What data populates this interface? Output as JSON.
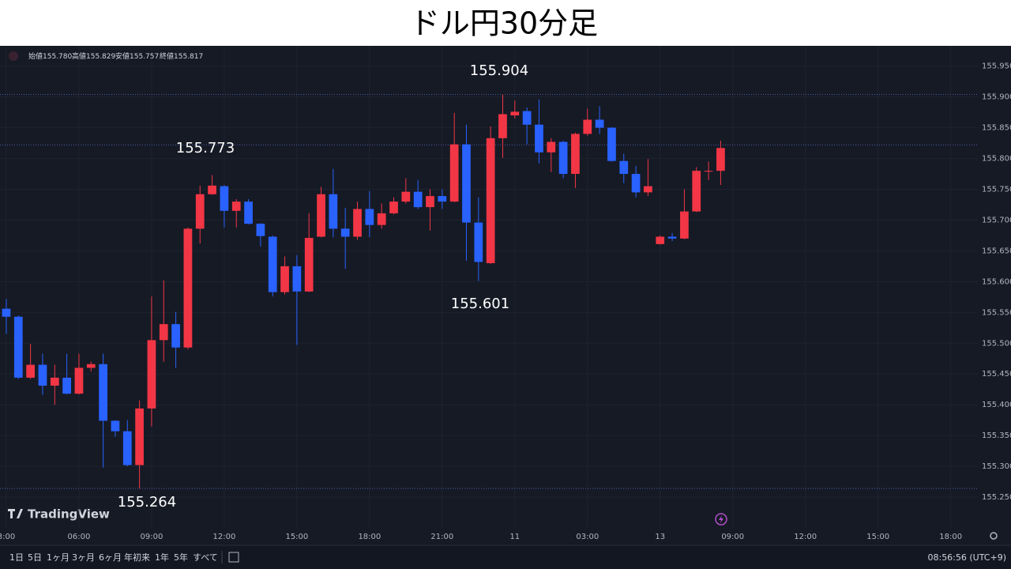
{
  "chart_data": {
    "type": "candlestick",
    "title": "ドル円30分足",
    "legend_items": [
      {
        "name": "始値",
        "value": "155.780"
      },
      {
        "name": "高値",
        "value": "155.829"
      },
      {
        "name": "安値",
        "value": "155.757"
      },
      {
        "name": "終値",
        "value": "155.817"
      }
    ],
    "open": [
      155.556,
      155.543,
      155.444,
      155.465,
      155.431,
      155.444,
      155.418,
      155.46,
      155.466,
      155.374,
      155.357,
      155.302,
      155.394,
      155.505,
      155.531,
      155.493,
      155.686,
      155.742,
      155.755,
      155.715,
      155.73,
      155.694,
      155.673,
      155.583,
      155.625,
      155.584,
      155.673,
      155.742,
      155.686,
      155.673,
      155.718,
      155.692,
      155.711,
      155.73,
      155.746,
      155.721,
      155.739,
      155.73,
      155.823,
      155.696,
      155.63,
      155.833,
      155.87,
      155.877,
      155.855,
      155.81,
      155.827,
      155.775,
      155.84,
      155.863,
      155.85,
      155.796,
      155.775,
      155.745,
      155.661,
      155.673,
      155.67,
      155.714,
      155.78,
      155.78
    ],
    "high": [
      155.572,
      155.545,
      155.499,
      155.483,
      155.465,
      155.483,
      155.483,
      155.47,
      155.483,
      155.375,
      155.375,
      155.407,
      155.576,
      155.602,
      155.551,
      155.688,
      155.756,
      155.773,
      155.757,
      155.734,
      155.734,
      155.695,
      155.675,
      155.641,
      155.643,
      155.711,
      155.754,
      155.783,
      155.72,
      155.73,
      155.747,
      155.727,
      155.737,
      155.768,
      155.765,
      155.75,
      155.75,
      155.874,
      155.855,
      155.737,
      155.852,
      155.904,
      155.894,
      155.883,
      155.896,
      155.833,
      155.829,
      155.842,
      155.881,
      155.885,
      155.851,
      155.808,
      155.788,
      155.799,
      155.675,
      155.679,
      155.75,
      155.786,
      155.795,
      155.829
    ],
    "low": [
      155.515,
      155.442,
      155.442,
      155.416,
      155.4,
      155.417,
      155.417,
      155.454,
      155.298,
      155.348,
      155.3,
      155.264,
      155.365,
      155.47,
      155.46,
      155.49,
      155.662,
      155.741,
      155.688,
      155.688,
      155.693,
      155.657,
      155.576,
      155.579,
      155.497,
      155.583,
      155.672,
      155.672,
      155.621,
      155.668,
      155.672,
      155.686,
      155.709,
      155.727,
      155.718,
      155.683,
      155.718,
      155.729,
      155.634,
      155.601,
      155.629,
      155.801,
      155.865,
      155.823,
      155.792,
      155.778,
      155.768,
      155.752,
      155.837,
      155.84,
      155.795,
      155.76,
      155.737,
      155.739,
      155.66,
      155.666,
      155.669,
      155.713,
      155.765,
      155.757
    ],
    "close": [
      155.543,
      155.444,
      155.465,
      155.431,
      155.444,
      155.418,
      155.46,
      155.466,
      155.374,
      155.357,
      155.302,
      155.394,
      155.505,
      155.531,
      155.493,
      155.686,
      155.742,
      155.756,
      155.715,
      155.73,
      155.694,
      155.674,
      155.583,
      155.625,
      155.584,
      155.671,
      155.742,
      155.686,
      155.673,
      155.718,
      155.692,
      155.711,
      155.73,
      155.746,
      155.721,
      155.739,
      155.73,
      155.823,
      155.696,
      155.632,
      155.833,
      155.872,
      155.876,
      155.855,
      155.81,
      155.827,
      155.775,
      155.84,
      155.863,
      155.85,
      155.796,
      155.775,
      155.745,
      155.755,
      155.673,
      155.67,
      155.714,
      155.78,
      155.78,
      155.817
    ],
    "up_color": "#f23645",
    "down_color": "#2962ff",
    "xlim": [
      -0.52,
      80.24
    ],
    "xticks": [
      {
        "value": 0,
        "label": "3:00"
      },
      {
        "value": 6,
        "label": "06:00"
      },
      {
        "value": 12,
        "label": "09:00"
      },
      {
        "value": 18,
        "label": "12:00"
      },
      {
        "value": 24,
        "label": "15:00"
      },
      {
        "value": 30,
        "label": "18:00"
      },
      {
        "value": 36,
        "label": "21:00"
      },
      {
        "value": 42,
        "label": "11"
      },
      {
        "value": 48,
        "label": "03:00"
      },
      {
        "value": 54,
        "label": "13"
      },
      {
        "value": 60,
        "label": "09:00"
      },
      {
        "value": 66,
        "label": "12:00"
      },
      {
        "value": 72,
        "label": "15:00"
      },
      {
        "value": 78,
        "label": "18:00"
      }
    ],
    "ylim": [
      155.2,
      155.983
    ],
    "yticks": [
      {
        "value": 155.25,
        "label": "155.250"
      },
      {
        "value": 155.3,
        "label": "155.300"
      },
      {
        "value": 155.35,
        "label": "155.350"
      },
      {
        "value": 155.4,
        "label": "155.400"
      },
      {
        "value": 155.45,
        "label": "155.450"
      },
      {
        "value": 155.5,
        "label": "155.500"
      },
      {
        "value": 155.55,
        "label": "155.550"
      },
      {
        "value": 155.6,
        "label": "155.600"
      },
      {
        "value": 155.65,
        "label": "155.650"
      },
      {
        "value": 155.7,
        "label": "155.700"
      },
      {
        "value": 155.75,
        "label": "155.750"
      },
      {
        "value": 155.8,
        "label": "155.800"
      },
      {
        "value": 155.85,
        "label": "155.850"
      },
      {
        "value": 155.9,
        "label": "155.900"
      },
      {
        "value": 155.95,
        "label": "155.950"
      }
    ],
    "grid": true,
    "price_lines": [
      155.904,
      155.822,
      155.264
    ],
    "annotations": [
      "155.904",
      "155.773",
      "155.601",
      "155.264"
    ],
    "brand": "TradingView",
    "ranges": [
      "1日",
      "5日",
      "1ヶ月",
      "3ヶ月",
      "6ヶ月",
      "年初来",
      "1年",
      "5年",
      "すべて"
    ],
    "clock": "08:56:56 (UTC+9)"
  }
}
